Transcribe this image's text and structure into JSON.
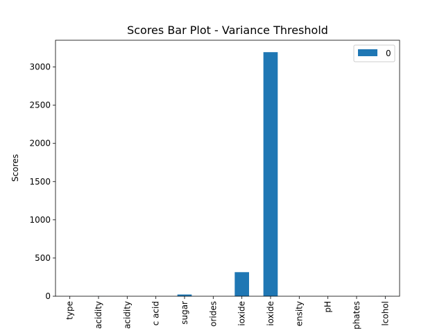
{
  "chart_data": {
    "type": "bar",
    "title": "Scores Bar Plot - Variance Threshold",
    "xlabel": "",
    "ylabel": "Scores",
    "categories": [
      "type",
      "acidity",
      "acidity",
      "c acid",
      "sugar",
      "orides",
      "ioxide",
      "ioxide",
      "ensity",
      "pH",
      "phates",
      "lcohol"
    ],
    "series": [
      {
        "name": "0",
        "color": "#1f77b4",
        "values": [
          0.18,
          0.7,
          0.03,
          0.02,
          22.6,
          0.001,
          315.0,
          3194.0,
          0.0,
          0.03,
          0.02,
          1.4
        ]
      }
    ],
    "ylim": [
      0,
      3350
    ],
    "yticks": [
      0,
      500,
      1000,
      1500,
      2000,
      2500,
      3000
    ],
    "ytick_labels": [
      "0",
      "500",
      "1000",
      "1500",
      "2000",
      "2500",
      "3000"
    ],
    "legend_position": "upper right",
    "grid": false
  }
}
